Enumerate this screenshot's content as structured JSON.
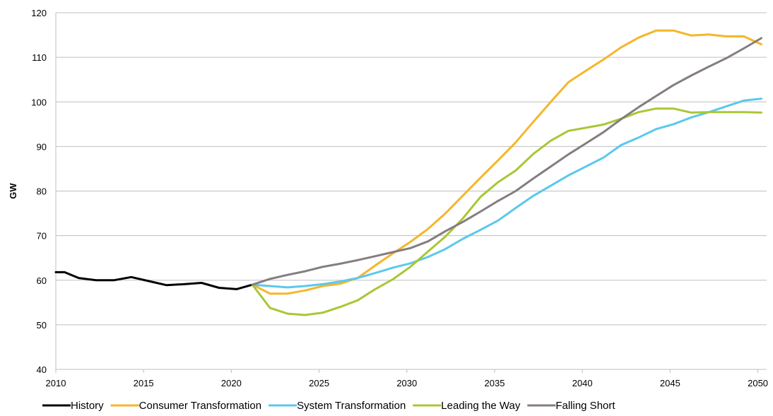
{
  "chart_data": {
    "type": "line",
    "title": "",
    "xlabel": "",
    "ylabel": "GW",
    "xlim": [
      2010,
      2050.5
    ],
    "ylim": [
      40,
      120
    ],
    "x_ticks": [
      "2010",
      "2015",
      "2020",
      "2025",
      "2030",
      "2035",
      "2040",
      "2045",
      "2050"
    ],
    "y_ticks": [
      "40",
      "50",
      "60",
      "70",
      "80",
      "90",
      "100",
      "110",
      "120"
    ],
    "grid": "horizontal",
    "legend_position": "bottom",
    "series": [
      {
        "name": "History",
        "color": "#000000",
        "x": [
          2010,
          2010.5,
          2011.3,
          2012.3,
          2013.3,
          2014.3,
          2015.3,
          2016.3,
          2017.3,
          2018.3,
          2019.3,
          2020.3,
          2021.2
        ],
        "y": [
          61.8,
          61.8,
          60.5,
          60.0,
          60.0,
          60.7,
          59.8,
          58.9,
          59.1,
          59.4,
          58.3,
          58.0,
          59.0
        ]
      },
      {
        "name": "Consumer Transformation",
        "color": "#F5B62A",
        "x": [
          2021.2,
          2022.2,
          2023.2,
          2024.2,
          2025.2,
          2026.2,
          2027.2,
          2028.2,
          2029.2,
          2030.2,
          2031.2,
          2032.2,
          2033.2,
          2034.2,
          2035.2,
          2036.2,
          2037.2,
          2038.2,
          2039.2,
          2040.2,
          2041.2,
          2042.2,
          2043.2,
          2044.2,
          2045.2,
          2046.2,
          2047.2,
          2048.2,
          2049.2,
          2050.2
        ],
        "y": [
          59.0,
          57.0,
          57.0,
          57.7,
          58.7,
          59.2,
          60.5,
          63.3,
          66.0,
          68.6,
          71.5,
          75.0,
          79.0,
          83.0,
          86.9,
          90.9,
          95.5,
          100.0,
          104.4,
          107.0,
          109.5,
          112.2,
          114.4,
          116.0,
          116.0,
          114.9,
          115.1,
          114.7,
          114.7,
          112.9
        ]
      },
      {
        "name": "System Transformation",
        "color": "#5BC8ED",
        "x": [
          2021.2,
          2022.2,
          2023.2,
          2024.2,
          2025.2,
          2026.2,
          2027.2,
          2028.2,
          2029.2,
          2030.2,
          2031.2,
          2032.2,
          2033.2,
          2034.2,
          2035.2,
          2036.2,
          2037.2,
          2038.2,
          2039.2,
          2040.2,
          2041.2,
          2042.2,
          2043.2,
          2044.2,
          2045.2,
          2046.2,
          2047.2,
          2048.2,
          2049.2,
          2050.2
        ],
        "y": [
          59.0,
          58.7,
          58.4,
          58.7,
          59.1,
          59.7,
          60.5,
          61.6,
          62.8,
          63.8,
          65.2,
          67.0,
          69.3,
          71.3,
          73.4,
          76.2,
          78.9,
          81.2,
          83.5,
          85.5,
          87.5,
          90.3,
          92.0,
          93.9,
          95.0,
          96.5,
          97.7,
          99.0,
          100.3,
          100.7
        ]
      },
      {
        "name": "Leading the Way",
        "color": "#A8C735",
        "x": [
          2021.2,
          2022.2,
          2023.2,
          2024.2,
          2025.2,
          2026.2,
          2027.2,
          2028.2,
          2029.2,
          2030.2,
          2031.2,
          2032.2,
          2033.2,
          2034.2,
          2035.2,
          2036.2,
          2037.2,
          2038.2,
          2039.2,
          2040.2,
          2041.2,
          2042.2,
          2043.2,
          2044.2,
          2045.2,
          2046.2,
          2047.2,
          2048.2,
          2049.2,
          2050.2
        ],
        "y": [
          59.0,
          53.8,
          52.5,
          52.2,
          52.7,
          54.0,
          55.5,
          58.0,
          60.2,
          63.0,
          66.4,
          69.8,
          73.9,
          78.7,
          82.0,
          84.6,
          88.3,
          91.3,
          93.5,
          94.2,
          94.9,
          96.2,
          97.7,
          98.5,
          98.5,
          97.6,
          97.7,
          97.7,
          97.7,
          97.6
        ]
      },
      {
        "name": "Falling Short",
        "color": "#847D7F",
        "x": [
          2021.2,
          2022.2,
          2023.2,
          2024.2,
          2025.2,
          2026.2,
          2027.2,
          2028.2,
          2029.2,
          2030.2,
          2031.2,
          2032.2,
          2033.2,
          2034.2,
          2035.2,
          2036.2,
          2037.2,
          2038.2,
          2039.2,
          2040.2,
          2041.2,
          2042.2,
          2043.2,
          2044.2,
          2045.2,
          2046.2,
          2047.2,
          2048.2,
          2049.2,
          2050.2
        ],
        "y": [
          59.0,
          60.3,
          61.2,
          62.0,
          63.0,
          63.7,
          64.5,
          65.4,
          66.3,
          67.2,
          68.7,
          71.0,
          73.1,
          75.4,
          77.8,
          80.0,
          82.8,
          85.5,
          88.2,
          90.7,
          93.2,
          96.1,
          98.8,
          101.3,
          103.8,
          105.9,
          107.9,
          109.8,
          112.0,
          114.3
        ]
      }
    ]
  }
}
